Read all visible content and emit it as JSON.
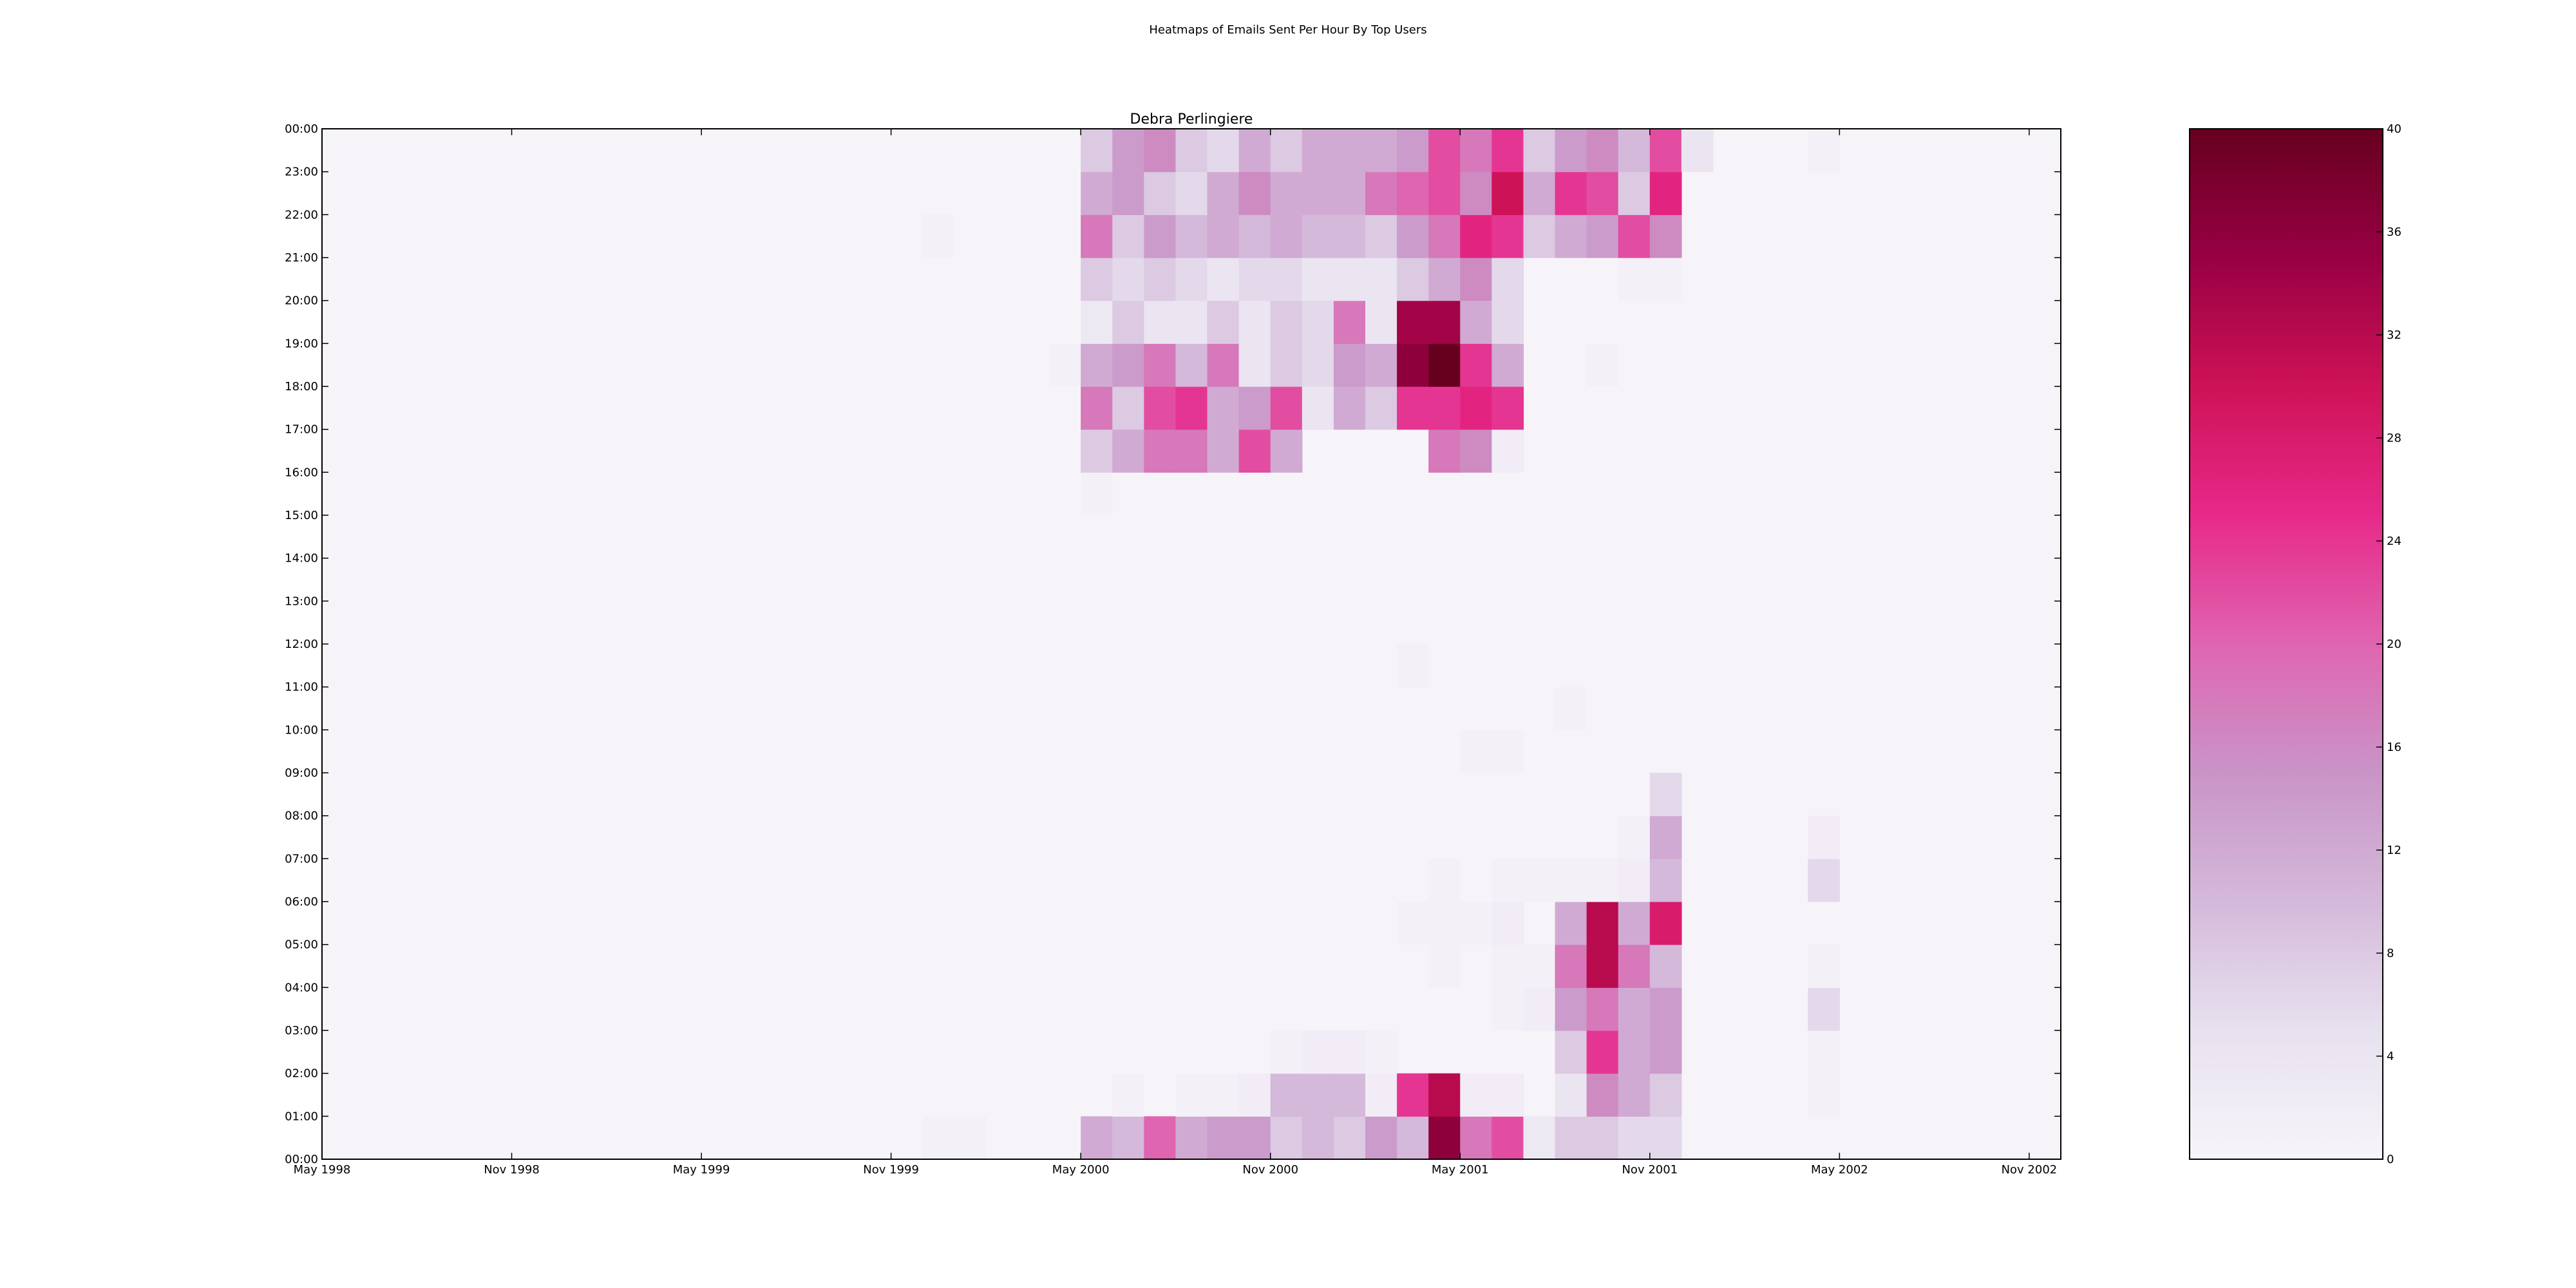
{
  "suptitle": "Heatmaps of Emails Sent Per Hour By Top Users",
  "chart_data": {
    "type": "heatmap",
    "title": "Debra Perlingiere",
    "xlabel": "",
    "ylabel": "",
    "x_tick_labels": [
      "May 1998",
      "Nov 1998",
      "May 1999",
      "Nov 1999",
      "May 2000",
      "Nov 2000",
      "May 2001",
      "Nov 2001",
      "May 2002",
      "Nov 2002"
    ],
    "y_tick_labels": [
      "00:00",
      "01:00",
      "02:00",
      "03:00",
      "04:00",
      "05:00",
      "06:00",
      "07:00",
      "08:00",
      "09:00",
      "10:00",
      "11:00",
      "12:00",
      "13:00",
      "14:00",
      "15:00",
      "16:00",
      "17:00",
      "18:00",
      "19:00",
      "20:00",
      "21:00",
      "22:00",
      "23:00",
      "00:00"
    ],
    "x_range": [
      "1998-05",
      "2002-12"
    ],
    "y_range": [
      0,
      24
    ],
    "grid": false,
    "colorbar": {
      "min": 0,
      "max": 40,
      "ticks": [
        0,
        4,
        8,
        12,
        16,
        20,
        24,
        28,
        32,
        36,
        40
      ],
      "colors": [
        "#f7f4f9",
        "#e7e1ef",
        "#d4b9da",
        "#c994c7",
        "#df65b0",
        "#e7298a",
        "#ce1256",
        "#980043",
        "#67001f"
      ]
    },
    "rows": [
      {
        "hour": 0,
        "months": [
          "1999-12",
          "2000-01",
          "2000-05",
          "2000-06",
          "2000-07",
          "2000-08",
          "2000-09",
          "2000-10",
          "2000-11",
          "2000-12",
          "2001-01",
          "2001-02",
          "2001-03",
          "2001-04",
          "2001-05",
          "2001-06",
          "2001-07",
          "2001-08",
          "2001-09",
          "2001-10",
          "2001-11"
        ],
        "values": [
          1,
          1,
          12,
          10,
          20,
          12,
          14,
          14,
          8,
          10,
          8,
          14,
          10,
          36,
          18,
          22,
          3,
          8,
          8,
          6,
          6
        ]
      },
      {
        "hour": 1,
        "months": [
          "2000-06",
          "2000-08",
          "2000-09",
          "2000-10",
          "2000-11",
          "2000-12",
          "2001-01",
          "2001-02",
          "2001-03",
          "2001-04",
          "2001-05",
          "2001-06",
          "2001-08",
          "2001-09",
          "2001-10",
          "2001-11",
          "2002-04"
        ],
        "values": [
          1,
          1,
          1,
          2,
          10,
          10,
          10,
          2,
          24,
          32,
          2,
          2,
          4,
          16,
          12,
          8,
          1
        ]
      },
      {
        "hour": 2,
        "months": [
          "2000-11",
          "2000-12",
          "2001-01",
          "2001-02",
          "2001-08",
          "2001-09",
          "2001-10",
          "2001-11",
          "2002-04"
        ],
        "values": [
          1,
          2,
          2,
          1,
          8,
          24,
          12,
          14,
          1
        ]
      },
      {
        "hour": 3,
        "months": [
          "2001-06",
          "2001-07",
          "2001-08",
          "2001-09",
          "2001-10",
          "2001-11",
          "2002-04"
        ],
        "values": [
          1,
          2,
          14,
          18,
          12,
          14,
          6
        ]
      },
      {
        "hour": 4,
        "months": [
          "2001-04",
          "2001-06",
          "2001-07",
          "2001-08",
          "2001-09",
          "2001-10",
          "2001-11",
          "2002-04"
        ],
        "values": [
          1,
          1,
          1,
          18,
          32,
          18,
          10,
          1
        ]
      },
      {
        "hour": 5,
        "months": [
          "2001-03",
          "2001-04",
          "2001-05",
          "2001-06",
          "2001-08",
          "2001-09",
          "2001-10",
          "2001-11"
        ],
        "values": [
          1,
          1,
          1,
          2,
          12,
          32,
          12,
          28
        ]
      },
      {
        "hour": 6,
        "months": [
          "2001-04",
          "2001-06",
          "2001-07",
          "2001-08",
          "2001-09",
          "2001-10",
          "2001-11",
          "2002-04"
        ],
        "values": [
          1,
          1,
          1,
          1,
          1,
          2,
          10,
          6
        ]
      },
      {
        "hour": 7,
        "months": [
          "2001-10",
          "2001-11",
          "2002-04"
        ],
        "values": [
          1,
          12,
          2
        ]
      },
      {
        "hour": 8,
        "months": [
          "2001-11"
        ],
        "values": [
          6
        ]
      },
      {
        "hour": 9,
        "months": [
          "2001-05",
          "2001-06"
        ],
        "values": [
          1,
          1
        ]
      },
      {
        "hour": 10,
        "months": [
          "2001-08"
        ],
        "values": [
          1
        ]
      },
      {
        "hour": 11,
        "months": [
          "2001-03"
        ],
        "values": [
          1
        ]
      },
      {
        "hour": 15,
        "months": [
          "2000-05"
        ],
        "values": [
          1
        ]
      },
      {
        "hour": 16,
        "months": [
          "2000-05",
          "2000-06",
          "2000-07",
          "2000-08",
          "2000-09",
          "2000-10",
          "2000-11",
          "2001-04",
          "2001-05",
          "2001-06"
        ],
        "values": [
          8,
          12,
          18,
          18,
          12,
          22,
          12,
          18,
          16,
          2
        ]
      },
      {
        "hour": 17,
        "months": [
          "2000-05",
          "2000-06",
          "2000-07",
          "2000-08",
          "2000-09",
          "2000-10",
          "2000-11",
          "2000-12",
          "2001-01",
          "2001-02",
          "2001-03",
          "2001-04",
          "2001-05",
          "2001-06"
        ],
        "values": [
          18,
          8,
          22,
          24,
          12,
          14,
          22,
          4,
          12,
          8,
          24,
          24,
          26,
          24
        ]
      },
      {
        "hour": 18,
        "months": [
          "2000-04",
          "2000-05",
          "2000-06",
          "2000-07",
          "2000-08",
          "2000-09",
          "2000-10",
          "2000-11",
          "2000-12",
          "2001-01",
          "2001-02",
          "2001-03",
          "2001-04",
          "2001-05",
          "2001-06",
          "2001-09"
        ],
        "values": [
          1,
          12,
          14,
          18,
          10,
          18,
          4,
          8,
          6,
          14,
          12,
          36,
          40,
          24,
          12,
          1
        ]
      },
      {
        "hour": 19,
        "months": [
          "2000-05",
          "2000-06",
          "2000-07",
          "2000-08",
          "2000-09",
          "2000-10",
          "2000-11",
          "2000-12",
          "2001-01",
          "2001-02",
          "2001-03",
          "2001-04",
          "2001-05",
          "2001-06"
        ],
        "values": [
          3,
          8,
          4,
          4,
          8,
          4,
          8,
          6,
          18,
          4,
          34,
          34,
          12,
          6
        ]
      },
      {
        "hour": 20,
        "months": [
          "2000-05",
          "2000-06",
          "2000-07",
          "2000-08",
          "2000-09",
          "2000-10",
          "2000-11",
          "2000-12",
          "2001-01",
          "2001-02",
          "2001-03",
          "2001-04",
          "2001-05",
          "2001-06",
          "2001-10",
          "2001-11"
        ],
        "values": [
          8,
          6,
          8,
          6,
          4,
          6,
          6,
          4,
          4,
          4,
          8,
          12,
          16,
          6,
          1,
          1
        ]
      },
      {
        "hour": 21,
        "months": [
          "1999-12",
          "2000-05",
          "2000-06",
          "2000-07",
          "2000-08",
          "2000-09",
          "2000-10",
          "2000-11",
          "2000-12",
          "2001-01",
          "2001-02",
          "2001-03",
          "2001-04",
          "2001-05",
          "2001-06",
          "2001-07",
          "2001-08",
          "2001-09",
          "2001-10",
          "2001-11"
        ],
        "values": [
          1,
          18,
          8,
          14,
          10,
          12,
          10,
          12,
          10,
          10,
          8,
          14,
          18,
          26,
          24,
          8,
          12,
          14,
          22,
          16
        ]
      },
      {
        "hour": 22,
        "months": [
          "2000-05",
          "2000-06",
          "2000-07",
          "2000-08",
          "2000-09",
          "2000-10",
          "2000-11",
          "2000-12",
          "2001-01",
          "2001-02",
          "2001-03",
          "2001-04",
          "2001-05",
          "2001-06",
          "2001-07",
          "2001-08",
          "2001-09",
          "2001-10",
          "2001-11"
        ],
        "values": [
          12,
          14,
          8,
          6,
          12,
          16,
          12,
          12,
          12,
          18,
          20,
          22,
          16,
          30,
          12,
          24,
          22,
          8,
          26
        ]
      },
      {
        "hour": 23,
        "months": [
          "2000-05",
          "2000-06",
          "2000-07",
          "2000-08",
          "2000-09",
          "2000-10",
          "2000-11",
          "2000-12",
          "2001-01",
          "2001-02",
          "2001-03",
          "2001-04",
          "2001-05",
          "2001-06",
          "2001-07",
          "2001-08",
          "2001-09",
          "2001-10",
          "2001-11",
          "2001-12",
          "2002-04"
        ],
        "values": [
          8,
          14,
          16,
          8,
          6,
          12,
          8,
          12,
          12,
          12,
          14,
          22,
          18,
          24,
          8,
          14,
          16,
          10,
          22,
          4,
          1
        ]
      }
    ]
  }
}
